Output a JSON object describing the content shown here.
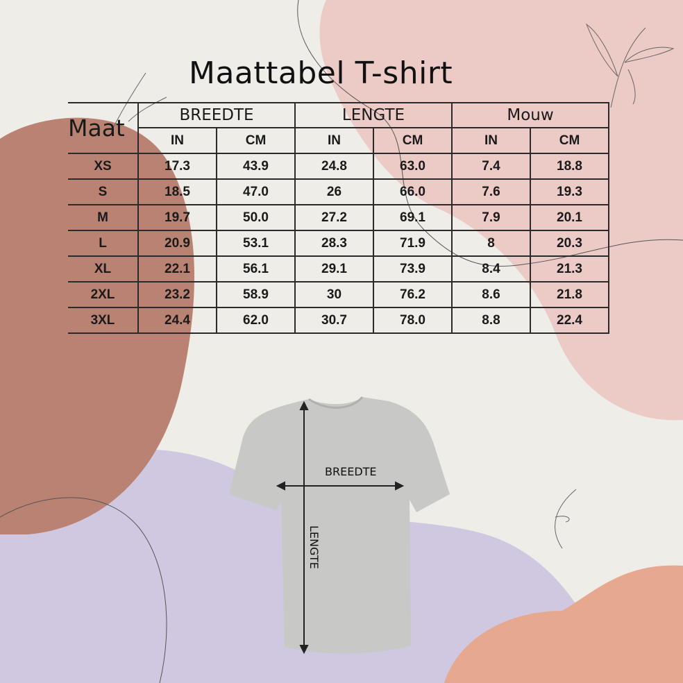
{
  "title": "Maattabel T-shirt",
  "table": {
    "size_header": "Maat",
    "groups": [
      "BREEDTE",
      "LENGTE",
      "Mouw"
    ],
    "units": [
      "IN",
      "CM",
      "IN",
      "CM",
      "IN",
      "CM"
    ],
    "rows": [
      {
        "size": "XS",
        "values": [
          "17.3",
          "43.9",
          "24.8",
          "63.0",
          "7.4",
          "18.8"
        ]
      },
      {
        "size": "S",
        "values": [
          "18.5",
          "47.0",
          "26",
          "66.0",
          "7.6",
          "19.3"
        ]
      },
      {
        "size": "M",
        "values": [
          "19.7",
          "50.0",
          "27.2",
          "69.1",
          "7.9",
          "20.1"
        ]
      },
      {
        "size": "L",
        "values": [
          "20.9",
          "53.1",
          "28.3",
          "71.9",
          "8",
          "20.3"
        ]
      },
      {
        "size": "XL",
        "values": [
          "22.1",
          "56.1",
          "29.1",
          "73.9",
          "8.4",
          "21.3"
        ]
      },
      {
        "size": "2XL",
        "values": [
          "23.2",
          "58.9",
          "30",
          "76.2",
          "8.6",
          "21.8"
        ]
      },
      {
        "size": "3XL",
        "values": [
          "24.4",
          "62.0",
          "30.7",
          "78.0",
          "8.8",
          "22.4"
        ]
      }
    ]
  },
  "diagram": {
    "width_label": "BREEDTE",
    "length_label": "LENGTE"
  },
  "colors": {
    "background": "#efede8",
    "terracotta": "#b98272",
    "pink": "#eccac6",
    "lavender": "#cfc8e0",
    "peach": "#e6a98f",
    "shirt": "#c8c8c6"
  }
}
